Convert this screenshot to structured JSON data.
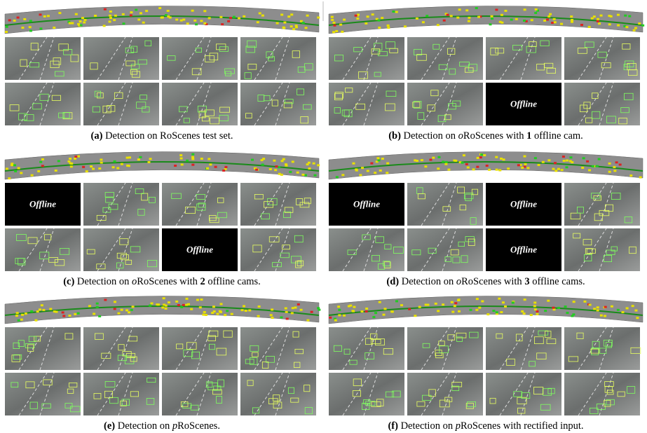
{
  "panels": [
    {
      "caption": {
        "label": "(a)",
        "runs": [
          {
            "text": "Detection on RoScenes test set."
          }
        ]
      },
      "cameras": [
        null,
        null,
        null,
        null,
        null,
        null,
        null,
        null
      ]
    },
    {
      "caption": {
        "label": "(b)",
        "runs": [
          {
            "text": "Detection on "
          },
          {
            "text": "o",
            "style": "italic"
          },
          {
            "text": "RoScenes with "
          },
          {
            "text": "1",
            "style": "bold"
          },
          {
            "text": " offline cam."
          }
        ]
      },
      "cameras": [
        null,
        null,
        null,
        null,
        null,
        null,
        "Offline",
        null
      ]
    },
    {
      "caption": {
        "label": "(c)",
        "runs": [
          {
            "text": "Detection on "
          },
          {
            "text": "o",
            "style": "italic"
          },
          {
            "text": "RoScenes with "
          },
          {
            "text": "2",
            "style": "bold"
          },
          {
            "text": " offline cams."
          }
        ]
      },
      "cameras": [
        "Offline",
        null,
        null,
        null,
        null,
        null,
        "Offline",
        null
      ]
    },
    {
      "caption": {
        "label": "(d)",
        "runs": [
          {
            "text": "Detection on "
          },
          {
            "text": "o",
            "style": "italic"
          },
          {
            "text": "RoScenes with "
          },
          {
            "text": "3",
            "style": "bold"
          },
          {
            "text": " offline cams."
          }
        ]
      },
      "cameras": [
        "Offline",
        null,
        "Offline",
        null,
        null,
        null,
        "Offline",
        null
      ]
    },
    {
      "caption": {
        "label": "(e)",
        "runs": [
          {
            "text": "Detection on "
          },
          {
            "text": "p",
            "style": "italic"
          },
          {
            "text": "RoScenes."
          }
        ]
      },
      "cameras": [
        null,
        null,
        null,
        null,
        null,
        null,
        null,
        null
      ]
    },
    {
      "caption": {
        "label": "(f)",
        "runs": [
          {
            "text": "Detection on "
          },
          {
            "text": "p",
            "style": "italic"
          },
          {
            "text": "RoScenes with rectified input."
          }
        ]
      },
      "cameras": [
        null,
        null,
        null,
        null,
        null,
        null,
        null,
        null
      ]
    }
  ]
}
